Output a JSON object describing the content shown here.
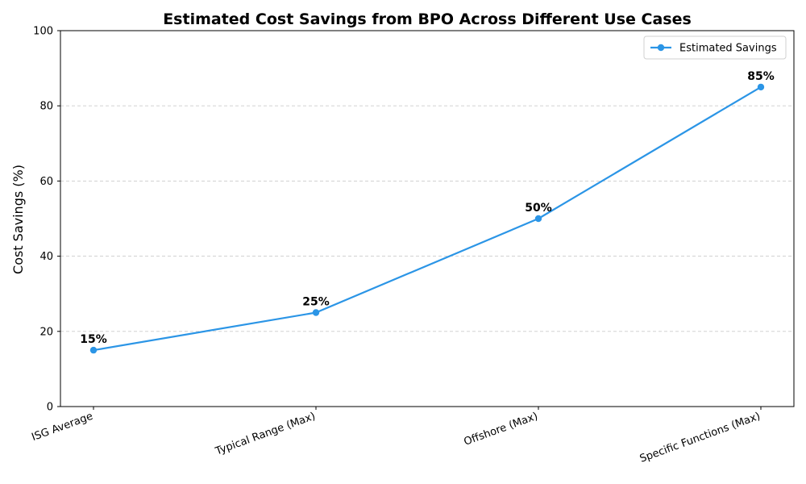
{
  "chart_data": {
    "type": "line",
    "title": "Estimated Cost Savings from BPO Across Different Use Cases",
    "xlabel": "",
    "ylabel": "Cost Savings (%)",
    "categories": [
      "ISG Average",
      "Typical Range (Max)",
      "Offshore (Max)",
      "Specific Functions (Max)"
    ],
    "series": [
      {
        "name": "Estimated Savings",
        "values": [
          15,
          25,
          50,
          85
        ],
        "data_labels": [
          "15%",
          "25%",
          "50%",
          "85%"
        ],
        "color": "#2b95e6"
      }
    ],
    "ylim": [
      0,
      100
    ],
    "yticks": [
      0,
      20,
      40,
      60,
      80,
      100
    ],
    "ytick_labels": [
      "0",
      "20",
      "40",
      "60",
      "80",
      "100"
    ],
    "grid": "horizontal-dashed",
    "legend_position": "top-right"
  }
}
